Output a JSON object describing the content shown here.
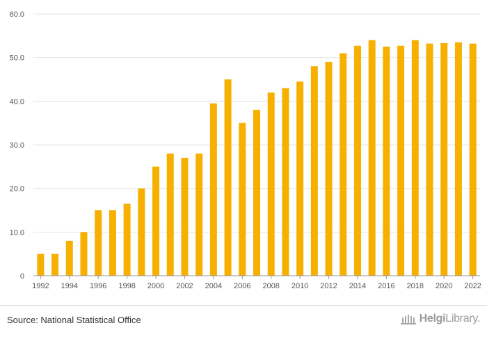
{
  "chart_data": {
    "type": "bar",
    "title": "",
    "xlabel": "",
    "ylabel": "",
    "categories": [
      "1992",
      "1993",
      "1994",
      "1995",
      "1996",
      "1997",
      "1998",
      "1999",
      "2000",
      "2001",
      "2002",
      "2003",
      "2004",
      "2005",
      "2006",
      "2007",
      "2008",
      "2009",
      "2010",
      "2011",
      "2012",
      "2013",
      "2014",
      "2015",
      "2016",
      "2017",
      "2018",
      "2019",
      "2020",
      "2021",
      "2022"
    ],
    "x_tick_labels": [
      "1992",
      "1994",
      "1996",
      "1998",
      "2000",
      "2002",
      "2004",
      "2006",
      "2008",
      "2010",
      "2012",
      "2014",
      "2016",
      "2018",
      "2020",
      "2022"
    ],
    "values": [
      5.0,
      5.0,
      8.0,
      10.0,
      15.0,
      15.0,
      16.5,
      20.0,
      25.0,
      28.0,
      27.0,
      28.0,
      39.5,
      45.0,
      35.0,
      38.0,
      42.0,
      43.0,
      44.5,
      48.0,
      49.0,
      51.0,
      52.7,
      54.0,
      52.5,
      52.7,
      54.0,
      53.2,
      53.3,
      53.5,
      53.2
    ],
    "ylim": [
      0,
      60
    ],
    "y_ticks": [
      0,
      10,
      20,
      30,
      40,
      50,
      60
    ],
    "y_tick_labels": [
      "0",
      "10.0",
      "20.0",
      "30.0",
      "40.0",
      "50.0",
      "60.0"
    ],
    "bar_color": "#F7B000",
    "grid": true
  },
  "footer": {
    "source": "Source: National Statistical Office",
    "brand_bold": "Helgi",
    "brand_regular": "Library."
  }
}
